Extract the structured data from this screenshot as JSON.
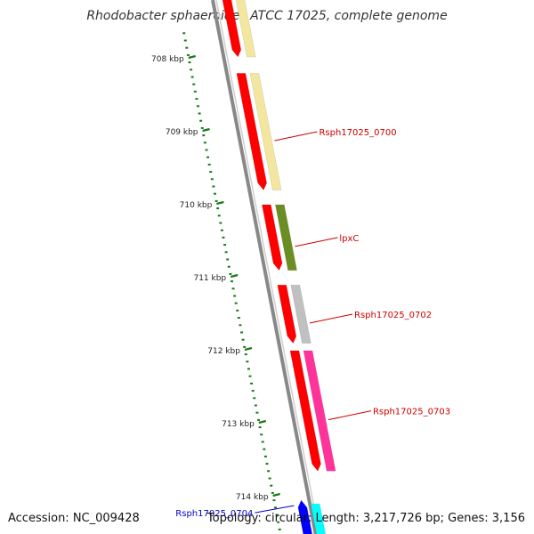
{
  "title": "Rhodobacter sphaeroides ATCC 17025, complete genome",
  "footer": {
    "accession": "Accession: NC_009428",
    "stats": "Topology: circular; Length: 3,217,726 bp; Genes: 3,156"
  },
  "scale": {
    "unit": "kbp",
    "marks": [
      {
        "kbp": 708,
        "label": "708 kbp"
      },
      {
        "kbp": 709,
        "label": "709 kbp"
      },
      {
        "kbp": 710,
        "label": "710 kbp"
      },
      {
        "kbp": 711,
        "label": "711 kbp"
      },
      {
        "kbp": 712,
        "label": "712 kbp"
      },
      {
        "kbp": 713,
        "label": "713 kbp"
      },
      {
        "kbp": 714,
        "label": "714 kbp"
      }
    ]
  },
  "colors": {
    "backbone": "#888888",
    "tick": "#1a7a1a",
    "label": "#cc0000",
    "label_line": "#cc0000",
    "label_strand_minus": "#0000cc",
    "cds_generic": "#ff0000"
  },
  "genes": [
    {
      "label": "Rsph17025_0700",
      "strand": "+",
      "start": 708.2,
      "end": 709.8,
      "color": "#f2e6a0"
    },
    {
      "label": "lpxC",
      "strand": "+",
      "start": 710.0,
      "end": 710.9,
      "color": "#6b8e23"
    },
    {
      "label": "Rsph17025_0702",
      "strand": "+",
      "start": 711.1,
      "end": 711.9,
      "color": "#c0c0c0"
    },
    {
      "label": "Rsph17025_0703",
      "strand": "+",
      "start": 712.0,
      "end": 713.65,
      "color": "#ff3399"
    },
    {
      "label": "Rsph17025_0704",
      "strand": "-",
      "start": 714.05,
      "end": 714.6,
      "color": "#0000ff"
    }
  ]
}
